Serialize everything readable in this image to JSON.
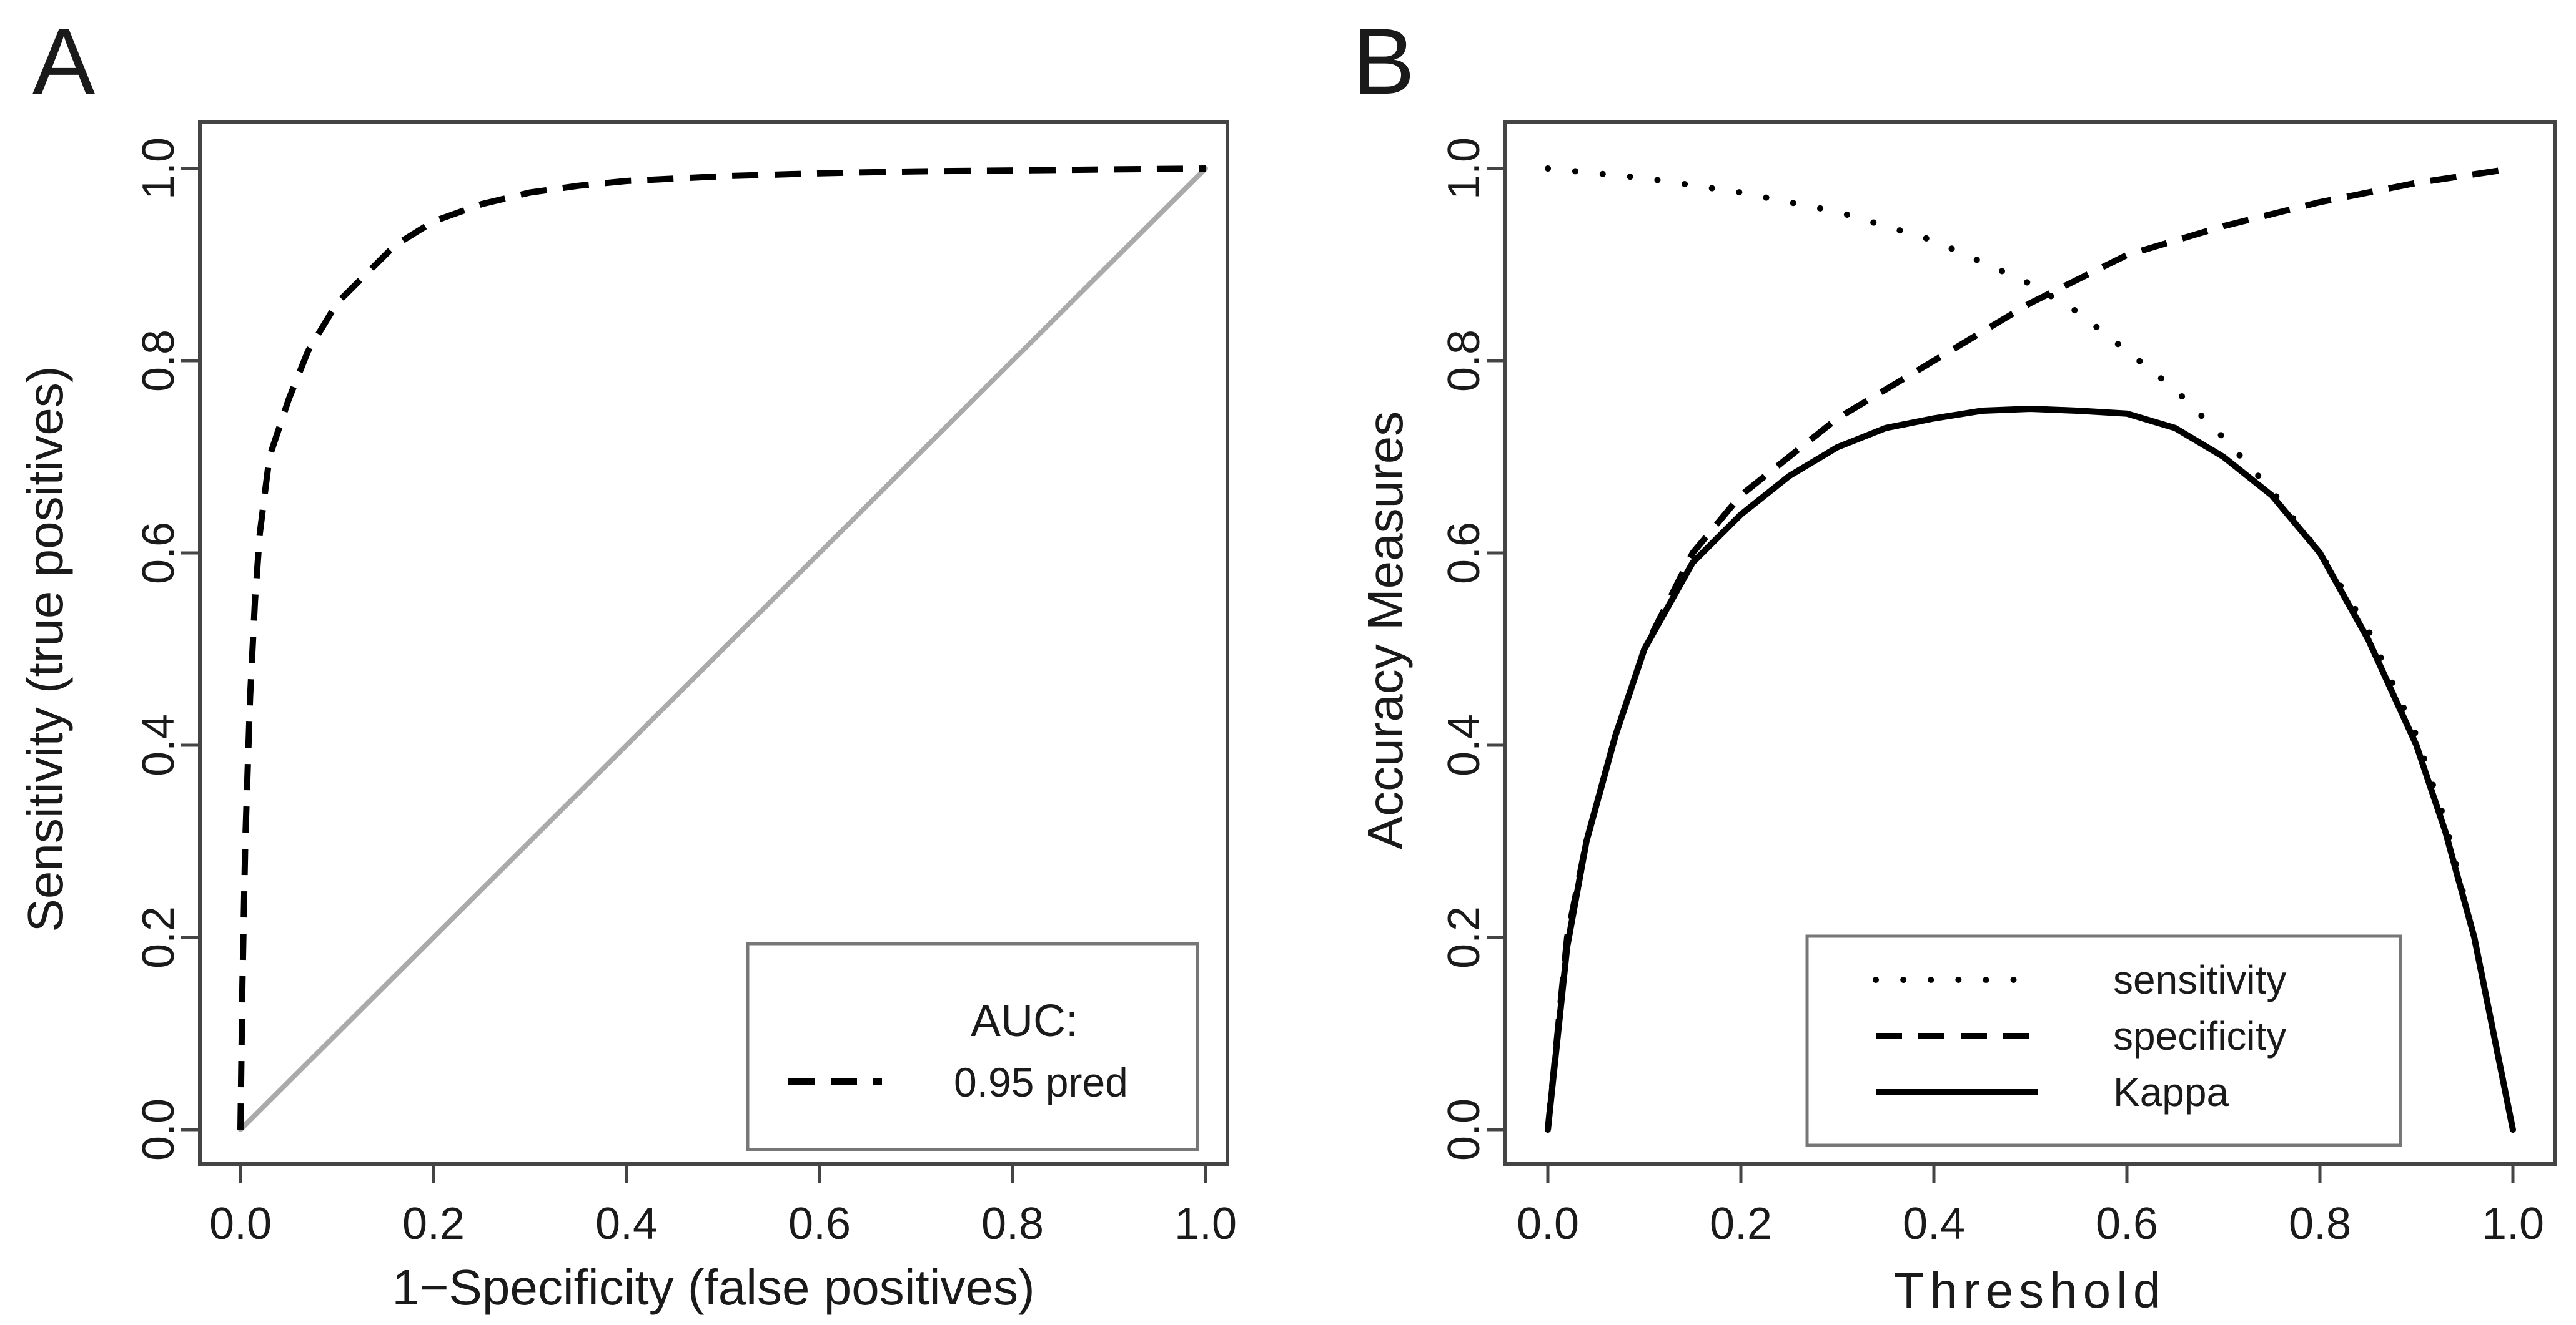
{
  "chart_data": [
    {
      "panel_label": "A",
      "type": "line",
      "title": "",
      "xlabel": "1−Specificity (false positives)",
      "ylabel": "Sensitivity (true positives)",
      "xlim": [
        0,
        1
      ],
      "ylim": [
        0,
        1
      ],
      "xticks": [
        "0.0",
        "0.2",
        "0.4",
        "0.6",
        "0.8",
        "1.0"
      ],
      "yticks": [
        "0.0",
        "0.2",
        "0.4",
        "0.6",
        "0.8",
        "1.0"
      ],
      "grid": false,
      "legend": {
        "position": "bottom-right",
        "title": "AUC:",
        "entries": [
          {
            "label": "0.95 pred",
            "style": "dashed"
          }
        ]
      },
      "series": [
        {
          "name": "pred",
          "style": "dashed",
          "color": "#000000",
          "x": [
            0,
            0.002,
            0.005,
            0.01,
            0.015,
            0.02,
            0.03,
            0.05,
            0.07,
            0.1,
            0.13,
            0.16,
            0.2,
            0.25,
            0.3,
            0.35,
            0.4,
            0.5,
            0.6,
            0.7,
            0.8,
            0.9,
            1.0
          ],
          "y": [
            0,
            0.15,
            0.3,
            0.45,
            0.55,
            0.62,
            0.7,
            0.76,
            0.81,
            0.86,
            0.89,
            0.92,
            0.945,
            0.963,
            0.975,
            0.982,
            0.987,
            0.992,
            0.995,
            0.997,
            0.998,
            0.999,
            1.0
          ]
        },
        {
          "name": "reference",
          "style": "solid",
          "color": "#aaaaaa",
          "x": [
            0,
            1
          ],
          "y": [
            0,
            1
          ]
        }
      ]
    },
    {
      "panel_label": "B",
      "type": "line",
      "title": "",
      "xlabel": "Threshold",
      "ylabel": "Accuracy Measures",
      "xlim": [
        0,
        1
      ],
      "ylim": [
        0,
        1
      ],
      "xticks": [
        "0.0",
        "0.2",
        "0.4",
        "0.6",
        "0.8",
        "1.0"
      ],
      "yticks": [
        "0.0",
        "0.2",
        "0.4",
        "0.6",
        "0.8",
        "1.0"
      ],
      "grid": false,
      "legend": {
        "position": "bottom-center",
        "entries": [
          {
            "label": "sensitivity",
            "style": "dotted"
          },
          {
            "label": "specificity",
            "style": "dashed"
          },
          {
            "label": "Kappa",
            "style": "solid"
          }
        ]
      },
      "series": [
        {
          "name": "sensitivity",
          "style": "dotted",
          "x": [
            0,
            0.1,
            0.2,
            0.3,
            0.4,
            0.5,
            0.55,
            0.6,
            0.65,
            0.7,
            0.75,
            0.8,
            0.85,
            0.9,
            0.93,
            0.96,
            0.98,
            1.0
          ],
          "y": [
            1.0,
            0.99,
            0.975,
            0.955,
            0.925,
            0.88,
            0.85,
            0.81,
            0.77,
            0.72,
            0.665,
            0.6,
            0.52,
            0.41,
            0.32,
            0.2,
            0.1,
            0.0
          ]
        },
        {
          "name": "specificity",
          "style": "dashed",
          "x": [
            0,
            0.02,
            0.04,
            0.07,
            0.1,
            0.15,
            0.2,
            0.3,
            0.4,
            0.5,
            0.6,
            0.7,
            0.8,
            0.9,
            1.0
          ],
          "y": [
            0.0,
            0.2,
            0.3,
            0.41,
            0.5,
            0.6,
            0.66,
            0.74,
            0.8,
            0.86,
            0.91,
            0.94,
            0.965,
            0.985,
            1.0
          ]
        },
        {
          "name": "Kappa",
          "style": "solid",
          "x": [
            0,
            0.02,
            0.04,
            0.07,
            0.1,
            0.15,
            0.2,
            0.25,
            0.3,
            0.35,
            0.4,
            0.45,
            0.5,
            0.55,
            0.6,
            0.65,
            0.7,
            0.75,
            0.8,
            0.85,
            0.9,
            0.93,
            0.96,
            0.98,
            1.0
          ],
          "y": [
            0.0,
            0.19,
            0.3,
            0.41,
            0.5,
            0.59,
            0.64,
            0.68,
            0.71,
            0.73,
            0.74,
            0.748,
            0.75,
            0.748,
            0.745,
            0.73,
            0.7,
            0.66,
            0.6,
            0.51,
            0.4,
            0.31,
            0.2,
            0.1,
            0.0
          ]
        }
      ]
    }
  ]
}
